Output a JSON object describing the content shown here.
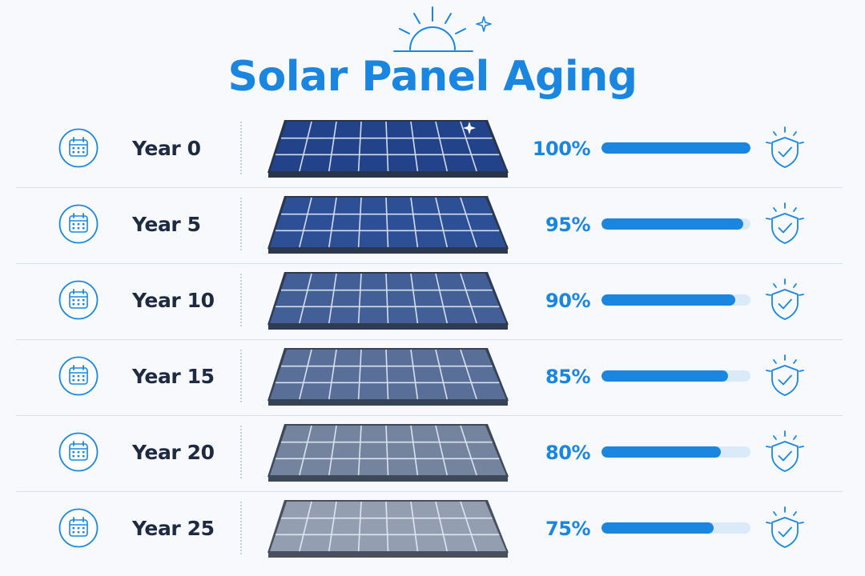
{
  "title": "Solar Panel Aging",
  "accent_color": "#1b86e0",
  "text_color": "#1d2a3f",
  "icons": {
    "header": "sun-icon",
    "row_left": "calendar-icon",
    "row_right": "shield-check-icon"
  },
  "rows": [
    {
      "year": "Year 0",
      "percent": "100%",
      "efficiency": 1.0,
      "panel_fill": "#22428a",
      "panel_border": "#27344a"
    },
    {
      "year": "Year 5",
      "percent": "95%",
      "efficiency": 0.95,
      "panel_fill": "#2d4f96",
      "panel_border": "#2b3850"
    },
    {
      "year": "Year 10",
      "percent": "90%",
      "efficiency": 0.9,
      "panel_fill": "#425f98",
      "panel_border": "#2f3b52"
    },
    {
      "year": "Year 15",
      "percent": "85%",
      "efficiency": 0.85,
      "panel_fill": "#5a6f97",
      "panel_border": "#364255"
    },
    {
      "year": "Year 20",
      "percent": "80%",
      "efficiency": 0.8,
      "panel_fill": "#74849f",
      "panel_border": "#3d4858"
    },
    {
      "year": "Year 25",
      "percent": "75%",
      "efficiency": 0.75,
      "panel_fill": "#939fb1",
      "panel_border": "#47505c"
    }
  ]
}
